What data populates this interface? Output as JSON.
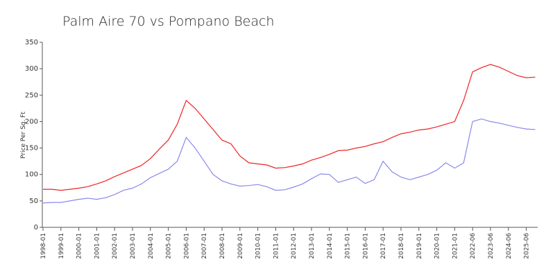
{
  "chart_data": {
    "type": "line",
    "title": "Palm Aire 70 vs Pompano Beach",
    "y_label": "Price Per Sq. Ft",
    "categories": [
      "1998-01",
      null,
      "1999-01",
      null,
      "2000-01",
      null,
      "2001-01",
      null,
      "2002-01",
      null,
      "2003-01",
      null,
      "2004-01",
      null,
      "2005-01",
      null,
      "2006-01",
      null,
      "2007-01",
      null,
      "2008-01",
      null,
      "2009-01",
      null,
      "2010-01",
      null,
      "2011-01",
      null,
      "2012-01",
      null,
      "2013-01",
      null,
      "2014-01",
      null,
      "2015-01",
      null,
      "2016-01",
      null,
      "2017-01",
      null,
      "2018-01",
      null,
      "2019-01",
      null,
      "2020-01",
      null,
      "2021-01",
      null,
      "2022-06",
      null,
      "2023-06",
      null,
      "2024-06",
      null,
      "2025-06",
      null
    ],
    "series": [
      {
        "color": "#ee2222",
        "values": [
          72,
          72,
          70,
          72,
          74,
          77,
          82,
          88,
          96,
          103,
          110,
          117,
          130,
          148,
          165,
          195,
          240,
          225,
          205,
          185,
          165,
          158,
          135,
          122,
          120,
          118,
          112,
          113,
          116,
          120,
          127,
          132,
          138,
          145,
          146,
          150,
          153,
          158,
          162,
          170,
          177,
          180,
          184,
          186,
          190,
          195,
          200,
          240,
          294,
          302,
          308,
          303,
          295,
          287,
          283,
          284
        ]
      },
      {
        "color": "#8888ee",
        "values": [
          46,
          47,
          47,
          50,
          53,
          55,
          53,
          56,
          62,
          70,
          74,
          82,
          94,
          102,
          110,
          125,
          170,
          150,
          125,
          100,
          88,
          82,
          78,
          79,
          81,
          77,
          70,
          71,
          76,
          82,
          92,
          101,
          100,
          85,
          90,
          95,
          83,
          90,
          125,
          105,
          95,
          90,
          95,
          100,
          108,
          122,
          112,
          122,
          200,
          205,
          200,
          197,
          193,
          189,
          186,
          185
        ]
      }
    ],
    "ylim": [
      0,
      350
    ],
    "yticks": [
      0,
      50,
      100,
      150,
      200,
      250,
      300,
      350
    ],
    "grid": false
  }
}
